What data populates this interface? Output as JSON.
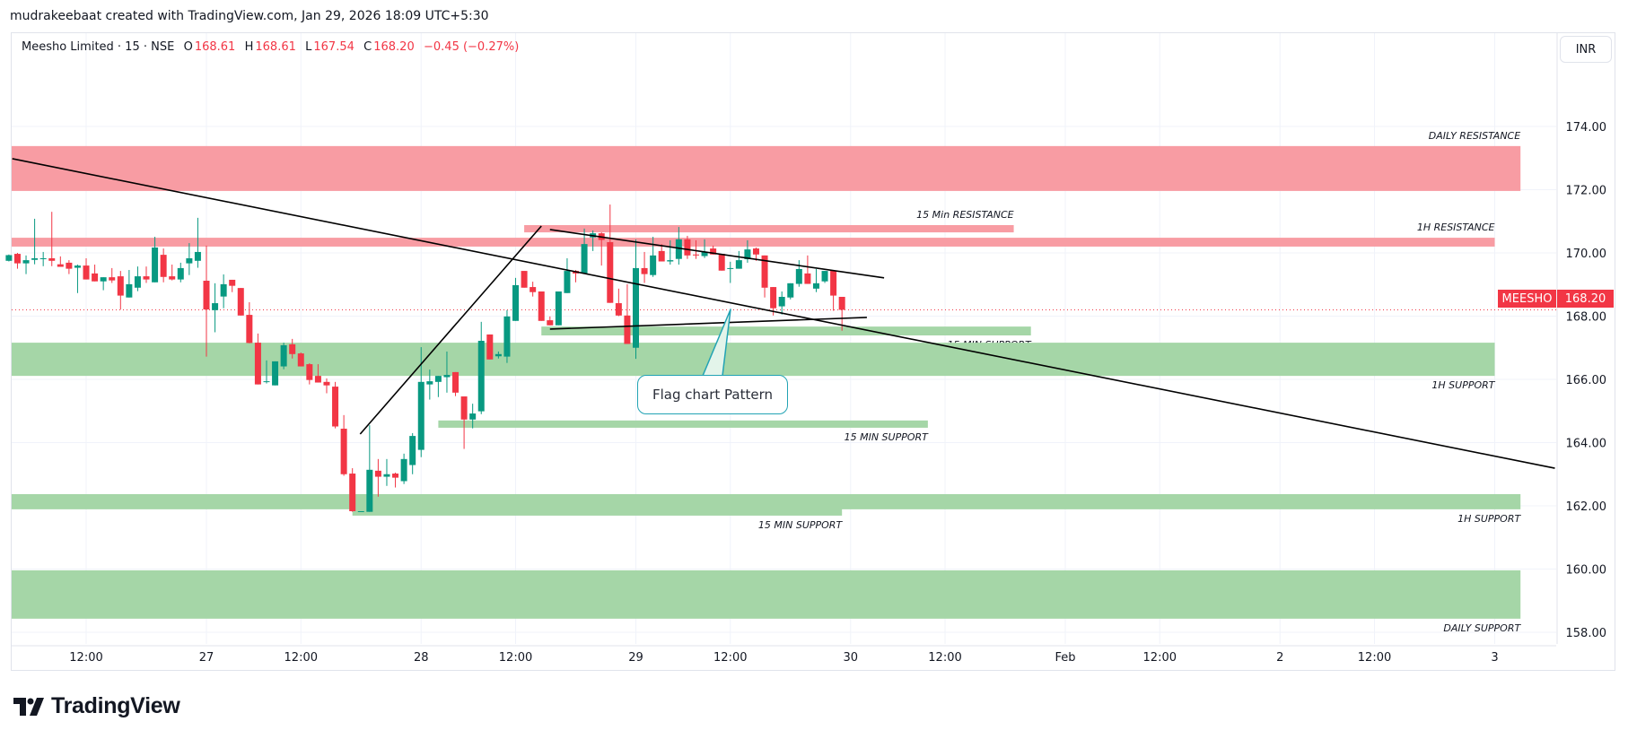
{
  "header": {
    "credit": "mudrakeebaat created with TradingView.com, Jan 29, 2026 18:09 UTC+5:30",
    "symbol": "Meesho Limited · 15 · NSE",
    "o_label": "O",
    "o": "168.61",
    "h_label": "H",
    "h": "168.61",
    "l_label": "L",
    "l": "167.54",
    "c_label": "C",
    "c": "168.20",
    "change": "−0.45 (−0.27%)",
    "currency": "INR"
  },
  "price_tag": {
    "symbol": "MEESHO",
    "price": "168.20"
  },
  "logo": {
    "text": "TradingView"
  },
  "annotation": {
    "text": "Flag chart Pattern"
  },
  "colors": {
    "up": "#089981",
    "down": "#f23645",
    "resistance": "#f89ca3",
    "support": "#a5d6a7",
    "callout_border": "#22a3b4"
  },
  "chart_data": {
    "type": "candlestick",
    "interval": "15",
    "y_ticks": [
      "174.00",
      "172.00",
      "170.00",
      "168.00",
      "166.00",
      "164.00",
      "162.00",
      "160.00",
      "158.00"
    ],
    "ylim": [
      157.5,
      175.5
    ],
    "x_ticks": [
      {
        "label": "12:00",
        "slot": -14
      },
      {
        "label": "27",
        "slot": 0
      },
      {
        "label": "12:00",
        "slot": 11
      },
      {
        "label": "28",
        "slot": 25
      },
      {
        "label": "12:00",
        "slot": 36
      },
      {
        "label": "29",
        "slot": 50
      },
      {
        "label": "12:00",
        "slot": 61
      },
      {
        "label": "30",
        "slot": 75
      },
      {
        "label": "12:00",
        "slot": 86
      },
      {
        "label": "Feb",
        "slot": 100
      },
      {
        "label": "12:00",
        "slot": 111
      },
      {
        "label": "2",
        "slot": 125
      },
      {
        "label": "12:00",
        "slot": 136
      },
      {
        "label": "3",
        "slot": 150
      }
    ],
    "first_slot": -23,
    "candles": [
      [
        169.75,
        169.95,
        169.73,
        169.93
      ],
      [
        169.97,
        170.0,
        169.5,
        169.67
      ],
      [
        169.67,
        169.92,
        169.33,
        169.77
      ],
      [
        169.78,
        171.08,
        169.64,
        169.83
      ],
      [
        169.81,
        170.03,
        169.58,
        169.83
      ],
      [
        169.83,
        171.3,
        169.58,
        169.75
      ],
      [
        169.64,
        169.89,
        169.56,
        169.56
      ],
      [
        169.69,
        169.77,
        169.33,
        169.5
      ],
      [
        169.53,
        169.63,
        168.73,
        169.6
      ],
      [
        169.6,
        169.83,
        169.16,
        169.16
      ],
      [
        169.35,
        169.63,
        169.1,
        169.1
      ],
      [
        169.1,
        169.23,
        168.82,
        169.23
      ],
      [
        169.23,
        169.52,
        169.05,
        169.13
      ],
      [
        169.26,
        169.43,
        168.21,
        168.65
      ],
      [
        168.59,
        169.46,
        168.59,
        169.01
      ],
      [
        168.9,
        169.57,
        168.79,
        169.26
      ],
      [
        169.26,
        169.57,
        169.05,
        169.16
      ],
      [
        169.07,
        170.51,
        169.07,
        170.17
      ],
      [
        169.94,
        170.14,
        169.07,
        169.24
      ],
      [
        169.26,
        169.63,
        169.13,
        169.16
      ],
      [
        169.16,
        169.69,
        169.07,
        169.52
      ],
      [
        169.67,
        170.31,
        169.3,
        169.83
      ],
      [
        169.75,
        171.11,
        169.53,
        170.03
      ],
      [
        169.12,
        170.23,
        166.72,
        168.21
      ],
      [
        168.19,
        169.04,
        167.49,
        168.41
      ],
      [
        168.62,
        169.32,
        168.25,
        169.01
      ],
      [
        169.15,
        169.15,
        168.76,
        168.96
      ],
      [
        168.89,
        168.89,
        168.02,
        168.02
      ],
      [
        168.04,
        168.44,
        167.14,
        167.15
      ],
      [
        167.16,
        167.45,
        165.84,
        165.84
      ],
      [
        165.92,
        166.6,
        165.87,
        165.94
      ],
      [
        165.81,
        166.57,
        165.81,
        166.57
      ],
      [
        166.41,
        167.16,
        166.32,
        167.08
      ],
      [
        167.11,
        167.28,
        166.66,
        166.8
      ],
      [
        166.82,
        166.85,
        166.41,
        166.41
      ],
      [
        166.48,
        166.51,
        165.84,
        165.98
      ],
      [
        166.11,
        166.48,
        165.9,
        165.9
      ],
      [
        165.92,
        166.03,
        165.56,
        165.81
      ],
      [
        165.77,
        165.92,
        164.45,
        164.51
      ],
      [
        164.44,
        164.87,
        162.95,
        163.0
      ],
      [
        163.02,
        163.19,
        161.81,
        161.83
      ],
      [
        161.81,
        161.83,
        161.81,
        161.83
      ],
      [
        161.81,
        164.55,
        161.81,
        163.14
      ],
      [
        163.11,
        163.48,
        162.29,
        162.92
      ],
      [
        162.92,
        163.48,
        162.63,
        163.0
      ],
      [
        163.02,
        163.05,
        162.58,
        162.89
      ],
      [
        162.78,
        163.65,
        162.69,
        163.48
      ],
      [
        163.29,
        164.3,
        163.0,
        164.21
      ],
      [
        163.77,
        167.02,
        163.54,
        165.92
      ],
      [
        165.84,
        166.31,
        165.36,
        165.94
      ],
      [
        165.92,
        166.11,
        165.44,
        166.11
      ],
      [
        166.07,
        166.88,
        165.58,
        166.14
      ],
      [
        166.23,
        166.23,
        165.47,
        165.58
      ],
      [
        165.46,
        165.46,
        163.8,
        164.73
      ],
      [
        164.73,
        165.23,
        164.45,
        164.92
      ],
      [
        164.99,
        167.82,
        164.9,
        167.22
      ],
      [
        167.42,
        167.42,
        166.63,
        166.63
      ],
      [
        166.73,
        166.88,
        166.66,
        166.8
      ],
      [
        166.72,
        168.19,
        166.52,
        167.99
      ],
      [
        167.85,
        169.21,
        167.85,
        168.98
      ],
      [
        169.43,
        169.43,
        168.9,
        168.9
      ],
      [
        168.92,
        169.09,
        168.62,
        168.76
      ],
      [
        168.78,
        168.78,
        167.85,
        167.85
      ],
      [
        167.87,
        167.99,
        167.71,
        167.71
      ],
      [
        167.71,
        168.78,
        167.71,
        168.78
      ],
      [
        168.73,
        169.83,
        168.73,
        169.43
      ],
      [
        169.43,
        169.46,
        169.07,
        169.35
      ],
      [
        169.35,
        170.77,
        169.35,
        170.28
      ],
      [
        170.49,
        170.71,
        170.06,
        170.62
      ],
      [
        170.62,
        170.65,
        169.6,
        170.41
      ],
      [
        170.34,
        171.53,
        168.42,
        168.42
      ],
      [
        168.41,
        168.87,
        168.0,
        168.02
      ],
      [
        168.02,
        169.01,
        167.12,
        167.12
      ],
      [
        167.0,
        170.43,
        166.65,
        169.52
      ],
      [
        169.52,
        170.03,
        169.05,
        169.33
      ],
      [
        169.3,
        170.51,
        169.24,
        169.92
      ],
      [
        170.06,
        170.28,
        169.73,
        169.73
      ],
      [
        169.73,
        170.4,
        169.63,
        169.77
      ],
      [
        169.81,
        170.82,
        169.63,
        170.43
      ],
      [
        170.43,
        170.54,
        169.81,
        169.92
      ],
      [
        169.95,
        170.4,
        169.81,
        169.92
      ],
      [
        169.9,
        170.43,
        169.84,
        170.03
      ],
      [
        170.14,
        170.23,
        169.95,
        169.95
      ],
      [
        169.97,
        169.97,
        169.44,
        169.44
      ],
      [
        169.5,
        169.72,
        169.05,
        169.52
      ],
      [
        169.5,
        170.06,
        169.5,
        169.77
      ],
      [
        169.8,
        170.4,
        169.69,
        170.11
      ],
      [
        170.14,
        170.17,
        169.75,
        169.95
      ],
      [
        169.92,
        169.92,
        168.59,
        168.9
      ],
      [
        168.92,
        168.92,
        168.02,
        168.25
      ],
      [
        168.31,
        168.78,
        168.05,
        168.61
      ],
      [
        168.59,
        169.04,
        168.53,
        169.04
      ],
      [
        169.02,
        169.77,
        168.93,
        169.49
      ],
      [
        169.35,
        169.92,
        169.02,
        169.02
      ],
      [
        168.87,
        169.49,
        168.76,
        169.04
      ],
      [
        169.1,
        169.43,
        169.05,
        169.43
      ],
      [
        169.44,
        169.44,
        168.17,
        168.65
      ],
      [
        168.61,
        168.61,
        167.54,
        168.2
      ]
    ],
    "last_price": 168.2,
    "zones": [
      {
        "label": "DAILY RESISTANCE",
        "kind": "resistance",
        "top": 173.38,
        "bottom": 171.96,
        "from_slot": -23,
        "to_slot": 153,
        "label_pos": "above"
      },
      {
        "label": "1H RESISTANCE",
        "kind": "resistance",
        "top": 170.48,
        "bottom": 170.2,
        "from_slot": -23,
        "to_slot": 150,
        "label_pos": "above"
      },
      {
        "label": "15 Min RESISTANCE",
        "kind": "resistance",
        "top": 170.88,
        "bottom": 170.65,
        "from_slot": 37,
        "to_slot": 94,
        "label_pos": "above"
      },
      {
        "label": "15 MIN SUPPORT",
        "kind": "support",
        "top": 167.67,
        "bottom": 167.39,
        "from_slot": 39,
        "to_slot": 96,
        "label_pos": "below"
      },
      {
        "label": "1H SUPPORT",
        "kind": "support",
        "top": 167.16,
        "bottom": 166.11,
        "from_slot": -23,
        "to_slot": 150,
        "label_pos": "below"
      },
      {
        "label": "15 MIN SUPPORT",
        "kind": "support",
        "top": 164.7,
        "bottom": 164.47,
        "from_slot": 27,
        "to_slot": 84,
        "label_pos": "below"
      },
      {
        "label": "1H SUPPORT",
        "kind": "support",
        "top": 162.37,
        "bottom": 161.89,
        "from_slot": -23,
        "to_slot": 153,
        "label_pos": "below"
      },
      {
        "label": "15 MIN SUPPORT",
        "kind": "support",
        "top": 161.94,
        "bottom": 161.69,
        "from_slot": 17,
        "to_slot": 74,
        "label_pos": "below"
      },
      {
        "label": "DAILY SUPPORT",
        "kind": "support",
        "top": 159.96,
        "bottom": 158.43,
        "from_slot": -23,
        "to_slot": 153,
        "label_pos": "below"
      }
    ],
    "trendlines": [
      {
        "name": "long-downtrend",
        "from": [
          -22.6,
          172.98
        ],
        "to": [
          157,
          163.19
        ]
      },
      {
        "name": "flagpole",
        "from": [
          17.9,
          164.27
        ],
        "to": [
          39.0,
          170.85
        ]
      },
      {
        "name": "flag-upper",
        "from": [
          40.0,
          170.74
        ],
        "to": [
          78.9,
          169.21
        ]
      },
      {
        "name": "flag-lower",
        "from": [
          40.0,
          167.59
        ],
        "to": [
          76.9,
          167.96
        ]
      }
    ]
  }
}
